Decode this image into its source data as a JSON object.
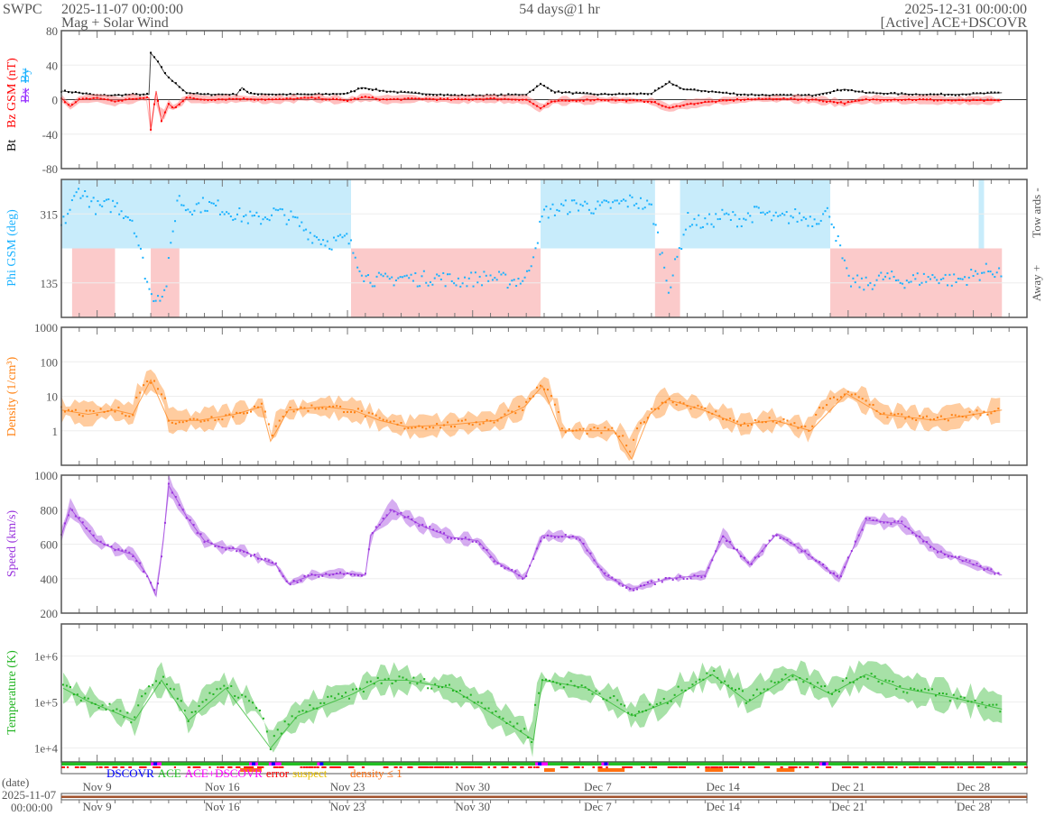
{
  "header": {
    "brand": "SWPC",
    "start_time": "2025-11-07 00:00:00",
    "product": "Mag + Solar Wind",
    "span": "54 days@1 hr",
    "end_time": "2025-12-31 00:00:00",
    "source": "[Active] ACE+DSCOVR"
  },
  "colors": {
    "bt": "#000000",
    "bz": "#ff0000",
    "bx": "#9933ff",
    "by": "#1ab2ff",
    "phi": "#1ab2ff",
    "towards_fill": "#c8ecfb",
    "away_fill": "#fbcaca",
    "density": "#ff8010",
    "speed": "#9933dd",
    "temperature": "#22b422",
    "axis": "#555555",
    "date_bar": "#a0522d"
  },
  "chart_data": [
    {
      "type": "line",
      "title": "Mag",
      "ylim": [
        -80,
        80
      ],
      "yticks": [
        "80",
        "40",
        "0",
        "-40",
        "-80"
      ],
      "ylabel_parts": [
        "Bt",
        "Bz GSM (nT)",
        "Bx",
        "By"
      ],
      "x_unit": "days since 2025-11-07 00:00",
      "series": [
        {
          "name": "Bt",
          "points": [
            [
              0,
              10
            ],
            [
              1,
              8
            ],
            [
              2,
              5
            ],
            [
              3,
              5
            ],
            [
              4,
              6
            ],
            [
              4.9,
              6
            ],
            [
              5,
              54
            ],
            [
              5.4,
              44
            ],
            [
              5.8,
              30
            ],
            [
              6.2,
              22
            ],
            [
              7,
              8
            ],
            [
              8,
              6
            ],
            [
              9,
              6
            ],
            [
              9.8,
              6
            ],
            [
              10.1,
              14
            ],
            [
              10.5,
              7
            ],
            [
              12,
              6
            ],
            [
              14,
              6
            ],
            [
              16,
              7
            ],
            [
              16.8,
              14
            ],
            [
              18,
              10
            ],
            [
              20,
              7
            ],
            [
              22,
              5
            ],
            [
              24,
              5
            ],
            [
              26,
              6
            ],
            [
              26.8,
              18
            ],
            [
              27.6,
              9
            ],
            [
              30,
              6
            ],
            [
              33,
              7
            ],
            [
              34,
              20
            ],
            [
              34.8,
              12
            ],
            [
              36,
              10
            ],
            [
              38,
              6
            ],
            [
              40,
              5
            ],
            [
              42,
              5
            ],
            [
              43.8,
              12
            ],
            [
              45,
              8
            ],
            [
              48,
              6
            ],
            [
              50,
              6
            ],
            [
              52.6,
              8
            ]
          ]
        },
        {
          "name": "Bz",
          "points": [
            [
              0,
              2
            ],
            [
              0.5,
              -8
            ],
            [
              1,
              0
            ],
            [
              2,
              2
            ],
            [
              3,
              -2
            ],
            [
              4,
              1
            ],
            [
              4.9,
              2
            ],
            [
              5,
              -35
            ],
            [
              5.3,
              10
            ],
            [
              5.6,
              -25
            ],
            [
              6,
              -5
            ],
            [
              6.3,
              -10
            ],
            [
              7,
              2
            ],
            [
              8,
              0
            ],
            [
              10,
              1
            ],
            [
              12,
              0
            ],
            [
              14,
              2
            ],
            [
              16,
              -1
            ],
            [
              17,
              3
            ],
            [
              18,
              0
            ],
            [
              20,
              1
            ],
            [
              22,
              0
            ],
            [
              24,
              1
            ],
            [
              26,
              0
            ],
            [
              26.8,
              -10
            ],
            [
              27.5,
              -2
            ],
            [
              30,
              0
            ],
            [
              33,
              -2
            ],
            [
              34,
              -10
            ],
            [
              34.8,
              -6
            ],
            [
              36,
              -3
            ],
            [
              38,
              0
            ],
            [
              40,
              1
            ],
            [
              42,
              0
            ],
            [
              43.8,
              -4
            ],
            [
              45,
              0
            ],
            [
              48,
              0
            ],
            [
              50,
              -1
            ],
            [
              52.6,
              -1
            ]
          ]
        }
      ]
    },
    {
      "type": "scatter",
      "title": "Phi GSM",
      "ylim": [
        45,
        405
      ],
      "yticks": [
        "315",
        "135"
      ],
      "ylabel": "Phi GSM (deg)",
      "right_labels": [
        "Tow ards -",
        "Away +"
      ],
      "sectors": [
        {
          "from": 0,
          "to": 16.2,
          "kind": "towards"
        },
        {
          "from": 0.6,
          "to": 3,
          "kind": "away"
        },
        {
          "from": 5,
          "to": 6.6,
          "kind": "away"
        },
        {
          "from": 16.2,
          "to": 26.8,
          "kind": "away"
        },
        {
          "from": 26.8,
          "to": 33.2,
          "kind": "towards"
        },
        {
          "from": 33.2,
          "to": 34.6,
          "kind": "away"
        },
        {
          "from": 34.6,
          "to": 43.0,
          "kind": "towards"
        },
        {
          "from": 43.0,
          "to": 52.6,
          "kind": "away"
        },
        {
          "from": 51.3,
          "to": 51.6,
          "kind": "towards"
        }
      ],
      "series": [
        {
          "name": "Phi",
          "points": [
            [
              0,
              280
            ],
            [
              1,
              380
            ],
            [
              2,
              330
            ],
            [
              3,
              340
            ],
            [
              4,
              300
            ],
            [
              5,
              100
            ],
            [
              5.8,
              110
            ],
            [
              6.5,
              360
            ],
            [
              7,
              330
            ],
            [
              8,
              340
            ],
            [
              9,
              330
            ],
            [
              10,
              310
            ],
            [
              11,
              300
            ],
            [
              12,
              320
            ],
            [
              13,
              300
            ],
            [
              14,
              260
            ],
            [
              15,
              240
            ],
            [
              16,
              250
            ],
            [
              17,
              150
            ],
            [
              18,
              140
            ],
            [
              19,
              150
            ],
            [
              20,
              145
            ],
            [
              21,
              150
            ],
            [
              22,
              140
            ],
            [
              23,
              145
            ],
            [
              24,
              150
            ],
            [
              25,
              140
            ],
            [
              26,
              145
            ],
            [
              27,
              320
            ],
            [
              28,
              330
            ],
            [
              29,
              340
            ],
            [
              30,
              330
            ],
            [
              31,
              340
            ],
            [
              32,
              350
            ],
            [
              33,
              330
            ],
            [
              34,
              120
            ],
            [
              35,
              300
            ],
            [
              36,
              290
            ],
            [
              37,
              310
            ],
            [
              38,
              300
            ],
            [
              39,
              320
            ],
            [
              40,
              300
            ],
            [
              41,
              310
            ],
            [
              42,
              300
            ],
            [
              43,
              320
            ],
            [
              44,
              140
            ],
            [
              45,
              130
            ],
            [
              46,
              150
            ],
            [
              47,
              140
            ],
            [
              48,
              145
            ],
            [
              49,
              150
            ],
            [
              50,
              140
            ],
            [
              51,
              155
            ],
            [
              52,
              170
            ],
            [
              52.6,
              160
            ]
          ]
        }
      ]
    },
    {
      "type": "line",
      "title": "Density",
      "yscale": "log",
      "ylim": [
        0.1,
        1000
      ],
      "yticks": [
        "1000",
        "100",
        "10",
        "1"
      ],
      "ylabel": "Density (1/cm³)",
      "series": [
        {
          "name": "Density",
          "points": [
            [
              0,
              4
            ],
            [
              1.5,
              3
            ],
            [
              3,
              4
            ],
            [
              4,
              3
            ],
            [
              5,
              30
            ],
            [
              6,
              2
            ],
            [
              7.7,
              2
            ],
            [
              9.7,
              3
            ],
            [
              11.2,
              5
            ],
            [
              11.7,
              0.5
            ],
            [
              12.7,
              4
            ],
            [
              14.7,
              5
            ],
            [
              16.3,
              4
            ],
            [
              17.8,
              2
            ],
            [
              19.3,
              1.3
            ],
            [
              21.8,
              1.5
            ],
            [
              24.3,
              2
            ],
            [
              25.9,
              5
            ],
            [
              26.9,
              20
            ],
            [
              27.9,
              1
            ],
            [
              29.4,
              1
            ],
            [
              30.9,
              1
            ],
            [
              31.9,
              0.15
            ],
            [
              32.9,
              3
            ],
            [
              33.9,
              8
            ],
            [
              35.9,
              4
            ],
            [
              37.9,
              1.5
            ],
            [
              39.9,
              2
            ],
            [
              41.9,
              1
            ],
            [
              43.9,
              12
            ],
            [
              45.9,
              3
            ],
            [
              48.9,
              2
            ],
            [
              52.6,
              4
            ]
          ]
        }
      ]
    },
    {
      "type": "line",
      "title": "Speed",
      "ylim": [
        200,
        1000
      ],
      "yticks": [
        "1000",
        "800",
        "600",
        "400",
        "200"
      ],
      "ylabel": "Speed (km/s)",
      "series": [
        {
          "name": "Speed",
          "points": [
            [
              0,
              650
            ],
            [
              0.5,
              810
            ],
            [
              1,
              740
            ],
            [
              2,
              620
            ],
            [
              3,
              570
            ],
            [
              4,
              540
            ],
            [
              4.8,
              420
            ],
            [
              5.3,
              300
            ],
            [
              5.7,
              620
            ],
            [
              6,
              940
            ],
            [
              7,
              760
            ],
            [
              8,
              620
            ],
            [
              9,
              580
            ],
            [
              10,
              570
            ],
            [
              11,
              520
            ],
            [
              12,
              480
            ],
            [
              12.7,
              370
            ],
            [
              14,
              420
            ],
            [
              16,
              430
            ],
            [
              17,
              420
            ],
            [
              17.3,
              650
            ],
            [
              18.5,
              800
            ],
            [
              20.3,
              700
            ],
            [
              21.8,
              640
            ],
            [
              23.3,
              620
            ],
            [
              24.3,
              500
            ],
            [
              25.9,
              400
            ],
            [
              26.9,
              650
            ],
            [
              28.9,
              640
            ],
            [
              30.4,
              420
            ],
            [
              31.9,
              340
            ],
            [
              33.9,
              400
            ],
            [
              36,
              420
            ],
            [
              37,
              650
            ],
            [
              38.5,
              480
            ],
            [
              40,
              660
            ],
            [
              41.5,
              560
            ],
            [
              43.5,
              400
            ],
            [
              45,
              740
            ],
            [
              47,
              720
            ],
            [
              49,
              560
            ],
            [
              52.6,
              420
            ]
          ]
        }
      ]
    },
    {
      "type": "line",
      "title": "Temperature",
      "yscale": "log",
      "ylim": [
        5000,
        5000000
      ],
      "yticks": [
        "1e+6",
        "1e+5",
        "1e+4"
      ],
      "ylabel": "Temperature (K)",
      "series": [
        {
          "name": "Temperature",
          "points": [
            [
              0.1,
              200000
            ],
            [
              1.6,
              100000
            ],
            [
              4.1,
              40000
            ],
            [
              5.6,
              300000
            ],
            [
              7.1,
              40000
            ],
            [
              9.2,
              200000
            ],
            [
              11.7,
              10000
            ],
            [
              13.2,
              50000
            ],
            [
              16.3,
              150000
            ],
            [
              17.8,
              300000
            ],
            [
              19.3,
              300000
            ],
            [
              21.8,
              200000
            ],
            [
              24.3,
              50000
            ],
            [
              26.4,
              15000
            ],
            [
              26.9,
              300000
            ],
            [
              29.4,
              200000
            ],
            [
              31.9,
              50000
            ],
            [
              33.9,
              100000
            ],
            [
              36.4,
              400000
            ],
            [
              38.4,
              100000
            ],
            [
              40.9,
              400000
            ],
            [
              43,
              150000
            ],
            [
              45,
              400000
            ],
            [
              47,
              200000
            ],
            [
              50.1,
              120000
            ],
            [
              52.6,
              70000
            ]
          ]
        }
      ]
    }
  ],
  "source_legend": [
    {
      "label": "DSCOVR",
      "color": "#0000ff"
    },
    {
      "label": "ACE",
      "color": "#22c022"
    },
    {
      "label": "ACE+DSCOVR",
      "color": "#ff00ff"
    },
    {
      "label": "error",
      "color": "#ff0000"
    },
    {
      "label": "suspect",
      "color": "#e8c000"
    },
    {
      "label": "density ≤ 1",
      "color": "#ff7010"
    }
  ],
  "x_axis": {
    "ticks": [
      {
        "day": 2,
        "label": "Nov 9"
      },
      {
        "day": 9,
        "label": "Nov 16"
      },
      {
        "day": 16,
        "label": "Nov 23"
      },
      {
        "day": 23,
        "label": "Nov 30"
      },
      {
        "day": 30,
        "label": "Dec 7"
      },
      {
        "day": 37,
        "label": "Dec 14"
      },
      {
        "day": 44,
        "label": "Dec 21"
      },
      {
        "day": 51,
        "label": "Dec 28"
      }
    ],
    "days": 54
  },
  "date_panel": {
    "label": "(date)",
    "date": "2025-11-07",
    "time": "00:00:00"
  }
}
